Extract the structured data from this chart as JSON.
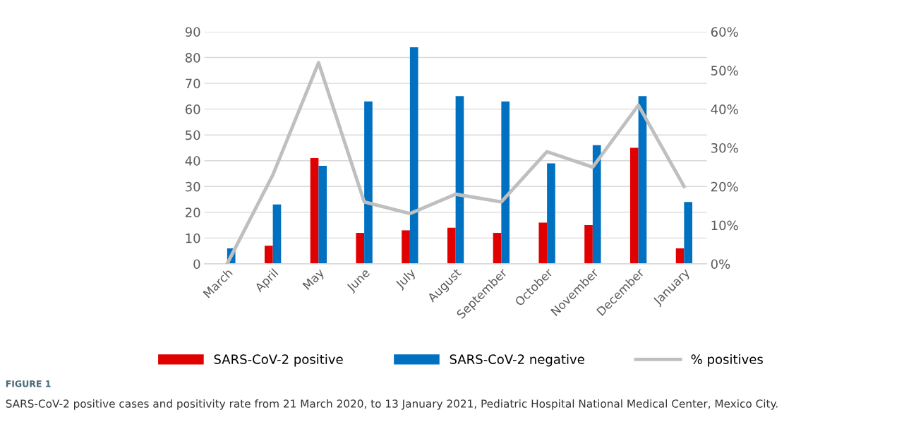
{
  "chart_data": {
    "type": "bar",
    "categories": [
      "March",
      "April",
      "May",
      "June",
      "July",
      "August",
      "September",
      "October",
      "November",
      "December",
      "January"
    ],
    "series": [
      {
        "name": "SARS-CoV-2 positive",
        "color": "#e00000",
        "values": [
          0,
          7,
          41,
          12,
          13,
          14,
          12,
          16,
          15,
          45,
          6
        ]
      },
      {
        "name": "SARS-CoV-2 negative",
        "color": "#0070c0",
        "values": [
          6,
          23,
          38,
          63,
          84,
          65,
          63,
          39,
          46,
          65,
          24
        ]
      },
      {
        "name": "% positives",
        "type": "line",
        "axis": "y2",
        "color": "#bfbfbf",
        "values": [
          0,
          23,
          52,
          16,
          13,
          18,
          16,
          29,
          25,
          41,
          20
        ]
      }
    ],
    "ylim": [
      0,
      90
    ],
    "yticks": [
      0,
      10,
      20,
      30,
      40,
      50,
      60,
      70,
      80,
      90
    ],
    "y2lim": [
      0,
      60
    ],
    "y2ticks": [
      {
        "value": 0,
        "label": "0%"
      },
      {
        "value": 10,
        "label": "10%"
      },
      {
        "value": 20,
        "label": "20%"
      },
      {
        "value": 30,
        "label": "30%"
      },
      {
        "value": 40,
        "label": "40%"
      },
      {
        "value": 50,
        "label": "50%"
      },
      {
        "value": 60,
        "label": "60%"
      }
    ],
    "grid": "y",
    "legend": "bottom",
    "annotations": [
      "FIGURE 1",
      "SARS-CoV-2 positive cases and positivity rate from 21 March 2020, to 13 January 2021, Pediatric Hospital National Medical Center, Mexico City."
    ]
  }
}
